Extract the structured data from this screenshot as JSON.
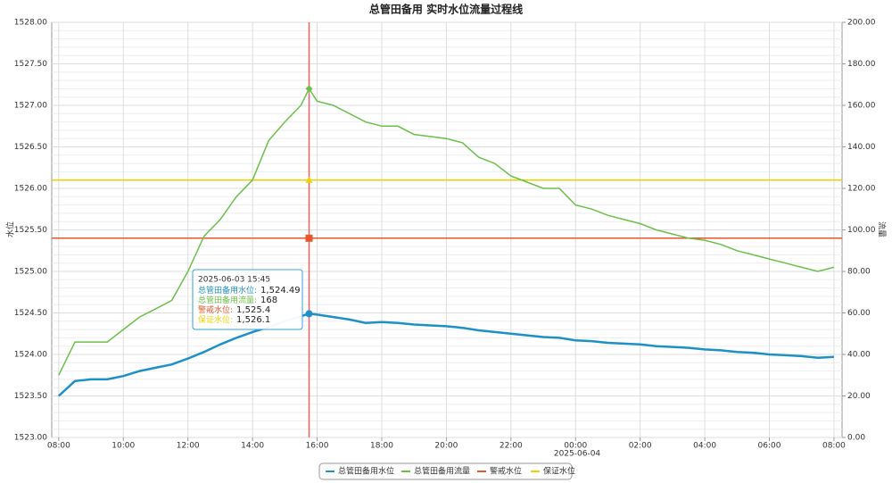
{
  "chart_data": {
    "type": "line",
    "title": "总管田备用 实时水位流量过程线",
    "y_label": "水位",
    "y2_label": "流量",
    "x_date_label": "2025-06-04",
    "x": [
      "2025-06-03 08:00",
      "2025-06-03 08:30",
      "2025-06-03 09:00",
      "2025-06-03 09:30",
      "2025-06-03 10:00",
      "2025-06-03 10:30",
      "2025-06-03 11:00",
      "2025-06-03 11:30",
      "2025-06-03 12:00",
      "2025-06-03 12:30",
      "2025-06-03 13:00",
      "2025-06-03 13:30",
      "2025-06-03 14:00",
      "2025-06-03 14:30",
      "2025-06-03 15:00",
      "2025-06-03 15:30",
      "2025-06-03 15:45",
      "2025-06-03 16:00",
      "2025-06-03 16:30",
      "2025-06-03 17:00",
      "2025-06-03 17:30",
      "2025-06-03 18:00",
      "2025-06-03 18:30",
      "2025-06-03 19:00",
      "2025-06-03 19:30",
      "2025-06-03 20:00",
      "2025-06-03 20:30",
      "2025-06-03 21:00",
      "2025-06-03 21:30",
      "2025-06-03 22:00",
      "2025-06-03 22:30",
      "2025-06-03 23:00",
      "2025-06-03 23:30",
      "2025-06-04 00:00",
      "2025-06-04 00:30",
      "2025-06-04 01:00",
      "2025-06-04 01:30",
      "2025-06-04 02:00",
      "2025-06-04 02:30",
      "2025-06-04 03:00",
      "2025-06-04 03:30",
      "2025-06-04 04:00",
      "2025-06-04 04:30",
      "2025-06-04 05:00",
      "2025-06-04 05:30",
      "2025-06-04 06:00",
      "2025-06-04 06:30",
      "2025-06-04 07:00",
      "2025-06-04 07:30",
      "2025-06-04 08:00"
    ],
    "series": [
      {
        "name": "总管田备用水位",
        "color": "#1e90c8",
        "axis": "y",
        "values": [
          1523.5,
          1523.68,
          1523.7,
          1523.7,
          1523.74,
          1523.8,
          1523.84,
          1523.88,
          1523.95,
          1524.03,
          1524.12,
          1524.2,
          1524.27,
          1524.33,
          1524.4,
          1524.46,
          1524.49,
          1524.48,
          1524.45,
          1524.42,
          1524.38,
          1524.39,
          1524.38,
          1524.36,
          1524.35,
          1524.34,
          1524.32,
          1524.29,
          1524.27,
          1524.25,
          1524.23,
          1524.21,
          1524.2,
          1524.17,
          1524.16,
          1524.14,
          1524.13,
          1524.12,
          1524.1,
          1524.09,
          1524.08,
          1524.06,
          1524.05,
          1524.03,
          1524.02,
          1524.0,
          1523.99,
          1523.98,
          1523.96,
          1523.97
        ]
      },
      {
        "name": "总管田备用流量",
        "color": "#6cbf4a",
        "axis": "y2",
        "values": [
          30,
          46,
          46,
          46,
          52,
          58,
          62,
          66,
          80,
          97,
          105,
          116,
          124,
          143,
          152,
          160,
          168,
          162,
          160,
          156,
          152,
          150,
          150,
          146,
          145,
          144,
          142,
          135,
          132,
          126,
          123,
          120,
          120,
          112,
          110,
          107,
          105,
          103,
          100,
          98,
          96,
          95,
          93,
          90,
          88,
          86,
          84,
          82,
          80,
          82
        ]
      }
    ],
    "lines": [
      {
        "name": "警戒水位",
        "color": "#e8562a",
        "value": 1525.4
      },
      {
        "name": "保证水位",
        "color": "#f0d000",
        "value": 1526.1
      }
    ],
    "xlim": [
      "2025-06-03 07:47",
      "2025-06-04 08:15"
    ],
    "xticks": [
      {
        "value": "2025-06-03 08:00",
        "label": "08:00"
      },
      {
        "value": "2025-06-03 10:00",
        "label": "10:00"
      },
      {
        "value": "2025-06-03 12:00",
        "label": "12:00"
      },
      {
        "value": "2025-06-03 14:00",
        "label": "14:00"
      },
      {
        "value": "2025-06-03 16:00",
        "label": "16:00"
      },
      {
        "value": "2025-06-03 18:00",
        "label": "18:00"
      },
      {
        "value": "2025-06-03 20:00",
        "label": "20:00"
      },
      {
        "value": "2025-06-03 22:00",
        "label": "22:00"
      },
      {
        "value": "2025-06-04 00:00",
        "label": "00:00"
      },
      {
        "value": "2025-06-04 02:00",
        "label": "02:00"
      },
      {
        "value": "2025-06-04 04:00",
        "label": "04:00"
      },
      {
        "value": "2025-06-04 06:00",
        "label": "06:00"
      },
      {
        "value": "2025-06-04 08:00",
        "label": "08:00"
      }
    ],
    "ylim": [
      1523,
      1528
    ],
    "yticks": [
      {
        "value": 1523,
        "label": "1523.00"
      },
      {
        "value": 1523.5,
        "label": "1523.50"
      },
      {
        "value": 1524,
        "label": "1524.00"
      },
      {
        "value": 1524.5,
        "label": "1524.50"
      },
      {
        "value": 1525,
        "label": "1525.00"
      },
      {
        "value": 1525.5,
        "label": "1525.50"
      },
      {
        "value": 1526,
        "label": "1526.00"
      },
      {
        "value": 1526.5,
        "label": "1526.50"
      },
      {
        "value": 1527,
        "label": "1527.00"
      },
      {
        "value": 1527.5,
        "label": "1527.50"
      },
      {
        "value": 1528,
        "label": "1528.00"
      }
    ],
    "y2lim": [
      0,
      200
    ],
    "y2ticks": [
      {
        "value": 0,
        "label": "0.00"
      },
      {
        "value": 20,
        "label": "20.00"
      },
      {
        "value": 40,
        "label": "40.00"
      },
      {
        "value": 60,
        "label": "60.00"
      },
      {
        "value": 80,
        "label": "80.00"
      },
      {
        "value": 100,
        "label": "100.00"
      },
      {
        "value": 120,
        "label": "120.00"
      },
      {
        "value": 140,
        "label": "140.00"
      },
      {
        "value": 160,
        "label": "160.00"
      },
      {
        "value": 180,
        "label": "180.00"
      },
      {
        "value": 200,
        "label": "200.00"
      }
    ],
    "grid": true,
    "legend": "bottom",
    "tooltip": {
      "x": "2025-06-03 15:45",
      "items": [
        {
          "text": "总管田备用水位:",
          "label": "1,524.49",
          "color": "#1e90c8"
        },
        {
          "text": "总管田备用流量:",
          "label": "168",
          "color": "#6cbf4a"
        },
        {
          "text": "警戒水位:",
          "label": "1,525.4",
          "color": "#e8562a"
        },
        {
          "text": "保证水位:",
          "label": "1,526.1",
          "color": "#f0d000"
        }
      ]
    }
  }
}
